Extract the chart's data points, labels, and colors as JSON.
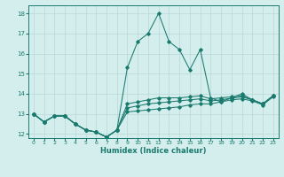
{
  "xlabel": "Humidex (Indice chaleur)",
  "bg_color": "#d4eeee",
  "grid_color": "#b8d8d8",
  "line_color": "#1a7a6e",
  "xlim": [
    -0.5,
    23.5
  ],
  "ylim": [
    11.8,
    18.4
  ],
  "xticks": [
    0,
    1,
    2,
    3,
    4,
    5,
    6,
    7,
    8,
    9,
    10,
    11,
    12,
    13,
    14,
    15,
    16,
    17,
    18,
    19,
    20,
    21,
    22,
    23
  ],
  "yticks": [
    12,
    13,
    14,
    15,
    16,
    17,
    18
  ],
  "hours": [
    0,
    1,
    2,
    3,
    4,
    5,
    6,
    7,
    8,
    9,
    10,
    11,
    12,
    13,
    14,
    15,
    16,
    17,
    18,
    19,
    20,
    21,
    22,
    23
  ],
  "line_max": [
    13.0,
    12.6,
    12.9,
    12.9,
    12.5,
    12.2,
    12.1,
    11.85,
    12.2,
    15.3,
    16.6,
    17.0,
    18.0,
    16.6,
    16.2,
    15.2,
    16.2,
    13.8,
    13.6,
    13.8,
    14.0,
    13.7,
    13.5,
    13.9
  ],
  "line_mid1": [
    13.0,
    12.6,
    12.9,
    12.9,
    12.5,
    12.2,
    12.1,
    11.85,
    12.2,
    13.5,
    13.6,
    13.7,
    13.8,
    13.8,
    13.8,
    13.85,
    13.9,
    13.75,
    13.8,
    13.85,
    13.9,
    13.7,
    13.5,
    13.9
  ],
  "line_mid2": [
    13.0,
    12.6,
    12.9,
    12.9,
    12.5,
    12.2,
    12.1,
    11.85,
    12.2,
    13.3,
    13.4,
    13.5,
    13.55,
    13.6,
    13.65,
    13.7,
    13.75,
    13.65,
    13.7,
    13.78,
    13.85,
    13.7,
    13.5,
    13.9
  ],
  "line_min": [
    13.0,
    12.6,
    12.9,
    12.9,
    12.5,
    12.2,
    12.1,
    11.85,
    12.2,
    13.1,
    13.15,
    13.2,
    13.25,
    13.3,
    13.35,
    13.45,
    13.5,
    13.5,
    13.6,
    13.7,
    13.75,
    13.65,
    13.45,
    13.85
  ]
}
